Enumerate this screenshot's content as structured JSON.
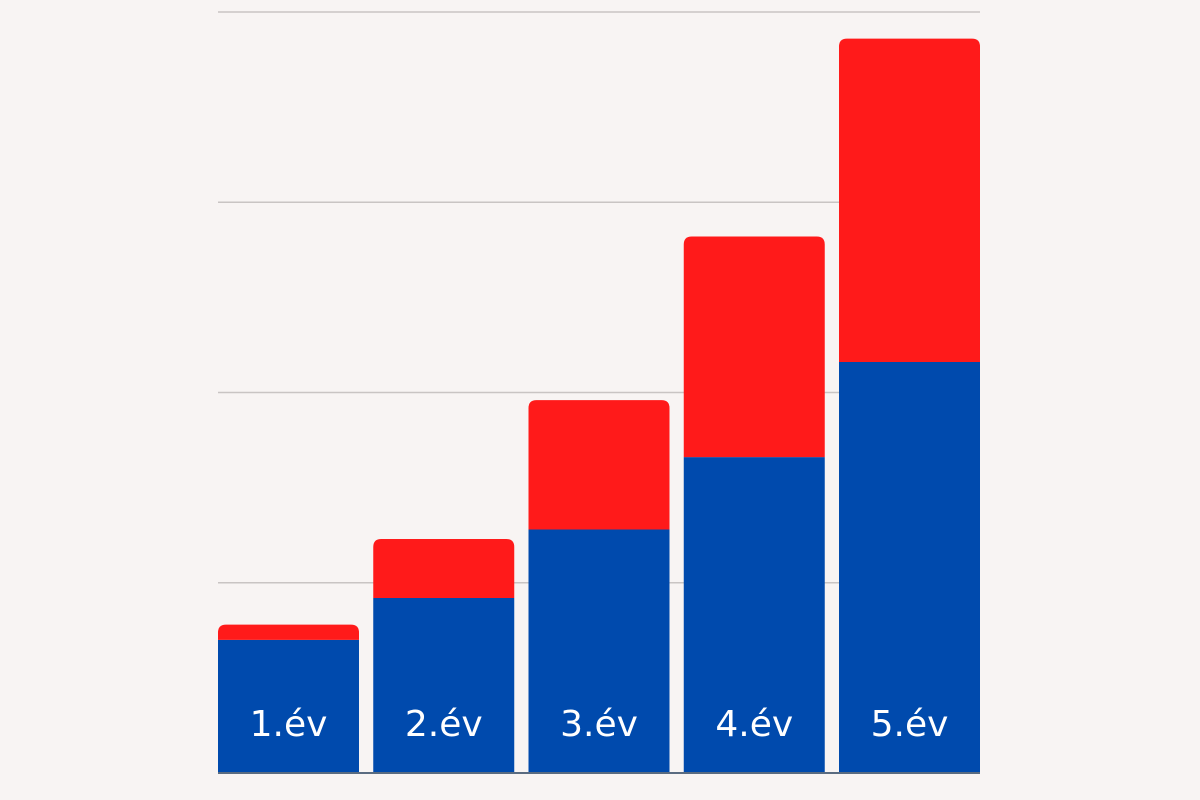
{
  "chart_data": {
    "type": "bar",
    "stacked": true,
    "categories": [
      "1.év",
      "2.év",
      "3.év",
      "4.év",
      "5.év"
    ],
    "series": [
      {
        "color": "#004aad",
        "values": [
          0.7,
          0.92,
          1.28,
          1.66,
          2.16
        ]
      },
      {
        "color": "#ff1a1a",
        "values": [
          0.08,
          0.31,
          0.68,
          1.16,
          1.7
        ]
      }
    ],
    "ylim": [
      0,
      4
    ],
    "grid": true,
    "legend": "none",
    "title": "",
    "xlabel": "",
    "ylabel": ""
  }
}
